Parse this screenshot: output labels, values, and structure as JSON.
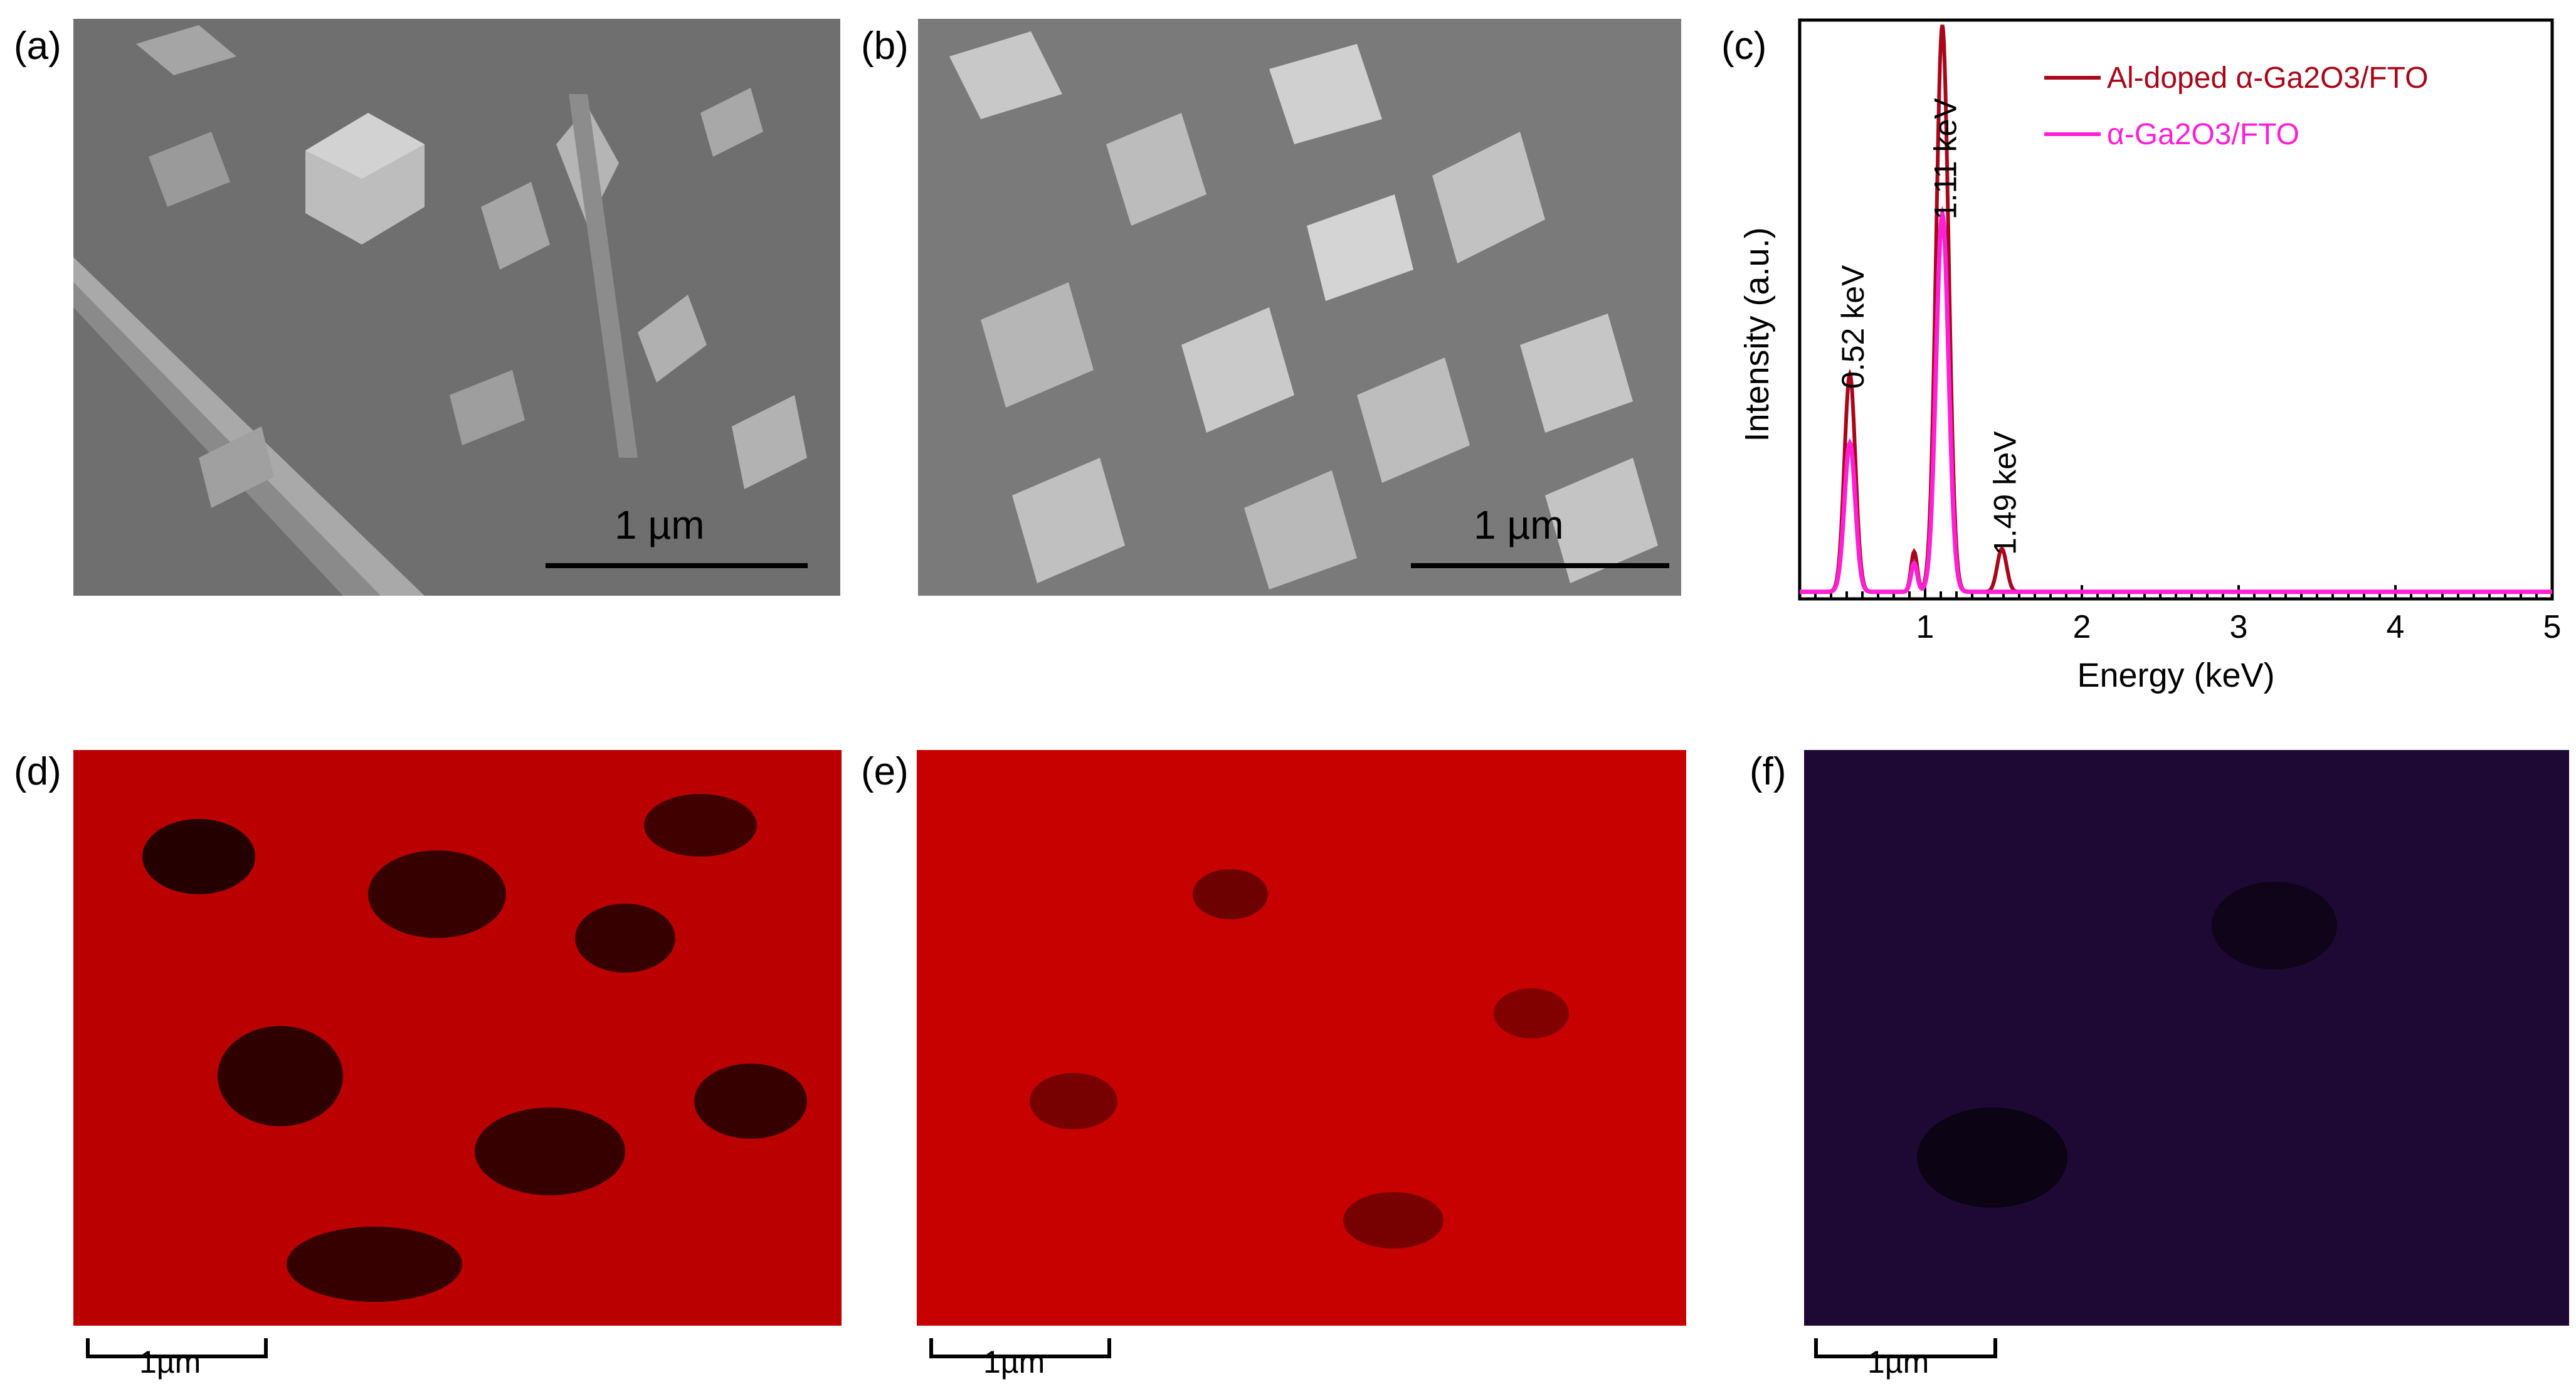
{
  "figure": {
    "panels": {
      "a": {
        "label": "(a)",
        "scale_text": "1 µm"
      },
      "b": {
        "label": "(b)",
        "scale_text": "1 µm"
      },
      "c": {
        "label": "(c)"
      },
      "d": {
        "label": "(d)",
        "scale_text": "1µm",
        "map_color": "#d40000"
      },
      "e": {
        "label": "(e)",
        "scale_text": "1µm",
        "map_color": "#d80000"
      },
      "f": {
        "label": "(f)",
        "scale_text": "1µm",
        "map_color": "#6a1fbf"
      }
    }
  },
  "chart_data": {
    "type": "line",
    "title": "",
    "xlabel": "Energy (keV)",
    "ylabel": "Intensity (a.u.)",
    "xlim": [
      0.2,
      5
    ],
    "ylim": [
      0,
      100
    ],
    "xticks": [
      1,
      2,
      3,
      4,
      5
    ],
    "x_tick_labels": [
      "1",
      "2",
      "3",
      "4",
      "5"
    ],
    "grid": false,
    "legend_position": "top-right",
    "legend": [
      {
        "name": "Al-doped α-Ga2O3/FTO",
        "color": "#a8071a"
      },
      {
        "name": "α-Ga2O3/FTO",
        "color": "#ff1fd4"
      }
    ],
    "series": [
      {
        "name": "Al-doped α-Ga2O3/FTO",
        "color": "#a8071a",
        "peaks": [
          {
            "center": 0.52,
            "height": 38,
            "width": 0.035
          },
          {
            "center": 0.93,
            "height": 7,
            "width": 0.02
          },
          {
            "center": 1.11,
            "height": 99,
            "width": 0.04
          },
          {
            "center": 1.49,
            "height": 7.5,
            "width": 0.03
          }
        ]
      },
      {
        "name": "α-Ga2O3/FTO",
        "color": "#ff1fd4",
        "peaks": [
          {
            "center": 0.52,
            "height": 26,
            "width": 0.035
          },
          {
            "center": 0.93,
            "height": 5,
            "width": 0.02
          },
          {
            "center": 1.11,
            "height": 66,
            "width": 0.04
          }
        ]
      }
    ],
    "annotations": [
      {
        "text": "0.52 keV",
        "x": 0.52
      },
      {
        "text": "1.11 keV",
        "x": 1.11
      },
      {
        "text": "1.49 keV",
        "x": 1.49
      }
    ]
  }
}
